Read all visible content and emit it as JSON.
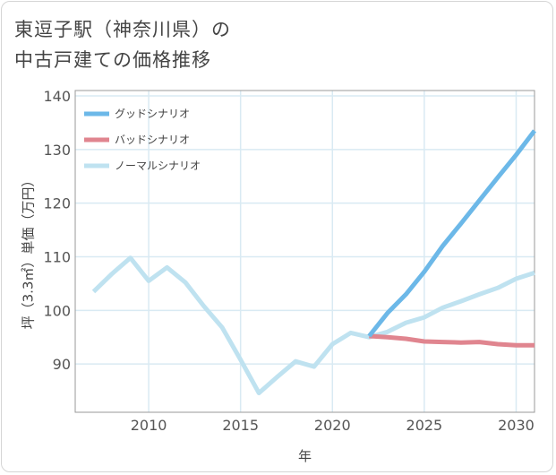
{
  "title_line1": "東逗子駅（神奈川県）の",
  "title_line2": "中古戸建ての価格推移",
  "chart_data": {
    "type": "line",
    "title": "東逗子駅（神奈川県）の中古戸建ての価格推移",
    "xlabel": "年",
    "ylabel": "坪（3.3㎡）単価（万円）",
    "xlim": [
      2006,
      2031
    ],
    "ylim": [
      81,
      141
    ],
    "xticks": [
      2010,
      2015,
      2020,
      2025,
      2030
    ],
    "yticks": [
      90,
      100,
      110,
      120,
      130,
      140
    ],
    "grid": true,
    "legend_position": "top-left",
    "series": [
      {
        "name": "グッドシナリオ",
        "color": "#6cb8e8",
        "x": [
          2022,
          2023,
          2024,
          2025,
          2026,
          2027,
          2028,
          2029,
          2030,
          2031
        ],
        "values": [
          95.2,
          99.5,
          103.0,
          107.2,
          112.0,
          116.2,
          120.5,
          124.8,
          129.0,
          133.5
        ]
      },
      {
        "name": "バッドシナリオ",
        "color": "#e0858f",
        "x": [
          2022,
          2023,
          2024,
          2025,
          2026,
          2027,
          2028,
          2029,
          2030,
          2031
        ],
        "values": [
          95.2,
          95.0,
          94.7,
          94.2,
          94.1,
          94.0,
          94.1,
          93.7,
          93.5,
          93.5
        ]
      },
      {
        "name": "ノーマルシナリオ",
        "color": "#bfe2f0",
        "x": [
          2007,
          2008,
          2009,
          2010,
          2011,
          2012,
          2013,
          2014,
          2015,
          2016,
          2017,
          2018,
          2019,
          2020,
          2021,
          2022,
          2023,
          2024,
          2025,
          2026,
          2027,
          2028,
          2029,
          2030,
          2031
        ],
        "values": [
          103.5,
          106.8,
          109.8,
          105.5,
          108.0,
          105.2,
          100.8,
          96.8,
          90.8,
          84.6,
          87.6,
          90.5,
          89.5,
          93.7,
          95.8,
          95.0,
          96.0,
          97.7,
          98.7,
          100.5,
          101.7,
          103.0,
          104.2,
          105.9,
          107.0
        ]
      }
    ]
  }
}
